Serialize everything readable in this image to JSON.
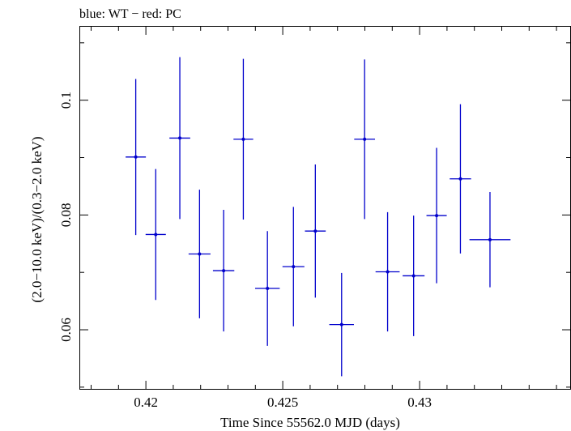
{
  "chart_data": {
    "type": "scatter",
    "title": "blue: WT − red: PC",
    "xlabel": "Time Since 55562.0 MJD (days)",
    "ylabel": "(2.0−10.0 keV)/(0.3−2.0 keV)",
    "xlim": [
      0.4176,
      0.4355
    ],
    "ylim": [
      0.0497,
      0.1128
    ],
    "x_ticks": [
      0.42,
      0.425,
      0.43
    ],
    "x_tick_labels": [
      "0.42",
      "0.425",
      "0.43"
    ],
    "y_ticks": [
      0.06,
      0.08,
      0.1
    ],
    "y_tick_labels": [
      "0.06",
      "0.08",
      "0.1"
    ],
    "grid": false,
    "series": [
      {
        "color": "#0000cc",
        "points": [
          {
            "x": 0.41963,
            "xerr": 0.00037,
            "y": 0.0901,
            "yerr": 0.0136
          },
          {
            "x": 0.42036,
            "xerr": 0.00037,
            "y": 0.0766,
            "yerr": 0.0114
          },
          {
            "x": 0.42124,
            "xerr": 0.00038,
            "y": 0.0934,
            "yerr": 0.0141
          },
          {
            "x": 0.42196,
            "xerr": 0.0004,
            "y": 0.0732,
            "yerr": 0.0112
          },
          {
            "x": 0.42284,
            "xerr": 0.00039,
            "y": 0.0703,
            "yerr": 0.0106
          },
          {
            "x": 0.42356,
            "xerr": 0.00036,
            "y": 0.0932,
            "yerr": 0.014
          },
          {
            "x": 0.42444,
            "xerr": 0.00045,
            "y": 0.0672,
            "yerr": 0.01
          },
          {
            "x": 0.42539,
            "xerr": 0.0004,
            "y": 0.071,
            "yerr": 0.0104
          },
          {
            "x": 0.42619,
            "xerr": 0.00038,
            "y": 0.0772,
            "yerr": 0.0116
          },
          {
            "x": 0.42715,
            "xerr": 0.00045,
            "y": 0.0609,
            "yerr": 0.009
          },
          {
            "x": 0.42799,
            "xerr": 0.00038,
            "y": 0.0932,
            "yerr": 0.0139
          },
          {
            "x": 0.42883,
            "xerr": 0.00044,
            "y": 0.0701,
            "yerr": 0.0104
          },
          {
            "x": 0.42978,
            "xerr": 0.0004,
            "y": 0.0694,
            "yerr": 0.0105
          },
          {
            "x": 0.43062,
            "xerr": 0.00037,
            "y": 0.0799,
            "yerr": 0.0118
          },
          {
            "x": 0.43149,
            "xerr": 0.00039,
            "y": 0.0863,
            "yerr": 0.013
          },
          {
            "x": 0.43257,
            "xerr": 0.00075,
            "y": 0.0757,
            "yerr": 0.0083
          }
        ]
      }
    ]
  }
}
